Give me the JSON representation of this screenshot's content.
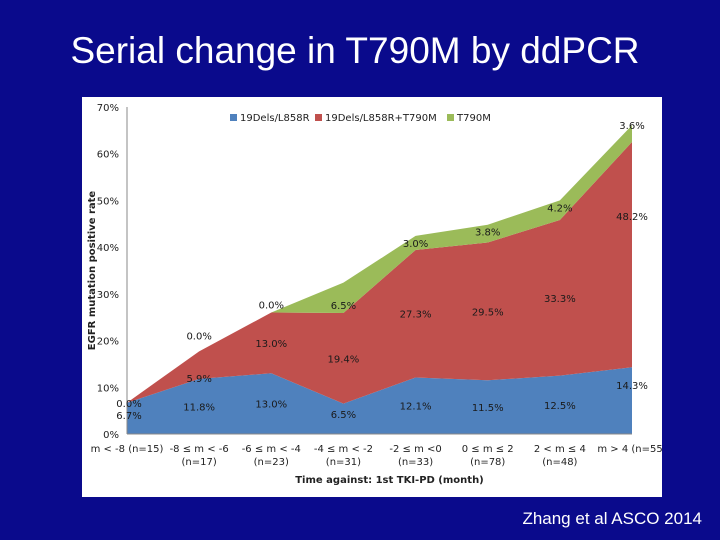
{
  "slide": {
    "title": "Serial change in T790M by ddPCR",
    "citation": "Zhang et al ASCO 2014"
  },
  "colors": {
    "background": "#0a0a8c",
    "series": [
      "#4f81bd",
      "#c0504d",
      "#9bbb59"
    ]
  },
  "chart_data": {
    "type": "area",
    "stacked": true,
    "title": "",
    "xlabel": "Time against: 1st TKI-PD (month)",
    "ylabel": "EGFR mutation positive rate",
    "ylim": [
      0,
      70
    ],
    "yticks": [
      "0%",
      "10%",
      "20%",
      "30%",
      "40%",
      "50%",
      "60%",
      "70%"
    ],
    "grid": false,
    "legend_position": "top",
    "categories": [
      [
        "m < -8 (n=15)",
        ""
      ],
      [
        "-8 ≤ m < -6",
        "(n=17)"
      ],
      [
        "-6 ≤ m < -4",
        "(n=23)"
      ],
      [
        "-4 ≤ m < -2",
        "(n=31)"
      ],
      [
        "-2 ≤ m <0",
        "(n=33)"
      ],
      [
        "0 ≤ m ≤ 2",
        "(n=78)"
      ],
      [
        "2 < m ≤ 4",
        "(n=48)"
      ],
      [
        "m > 4 (n=55)",
        ""
      ]
    ],
    "series": [
      {
        "name": "19Dels/L858R",
        "values": [
          6.7,
          11.8,
          13.0,
          6.5,
          12.1,
          11.5,
          12.5,
          14.3
        ],
        "labels": [
          "6.7%",
          "11.8%",
          "13.0%",
          "6.5%",
          "12.1%",
          "11.5%",
          "12.5%",
          "14.3%"
        ]
      },
      {
        "name": "19Dels/L858R+T790M",
        "values": [
          0.0,
          5.9,
          13.0,
          19.4,
          27.3,
          29.5,
          33.3,
          48.2
        ],
        "labels": [
          "0.0%",
          "5.9%",
          "13.0%",
          "19.4%",
          "27.3%",
          "29.5%",
          "33.3%",
          "48.2%"
        ]
      },
      {
        "name": "T790M",
        "values": [
          0.0,
          0.0,
          0.0,
          6.5,
          3.0,
          3.8,
          4.2,
          3.6
        ],
        "labels": [
          "",
          "0.0%",
          "0.0%",
          "6.5%",
          "3.0%",
          "3.8%",
          "4.2%",
          "3.6%"
        ]
      }
    ]
  }
}
